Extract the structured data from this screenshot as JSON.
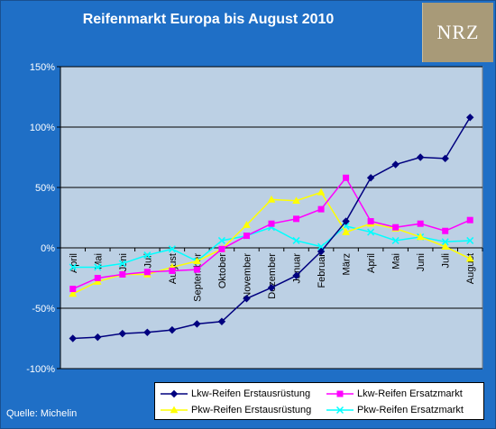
{
  "title": "Reifenmarkt Europa bis August 2010",
  "logo_text": "NRZ",
  "source": "Quelle: Michelin",
  "chart_data": {
    "type": "line",
    "title": "Reifenmarkt Europa bis August 2010",
    "xlabel": "",
    "ylabel": "",
    "categories": [
      "April",
      "Mai",
      "Juni",
      "Juli",
      "August",
      "September",
      "Oktober",
      "November",
      "Dezember",
      "Januar",
      "Februar",
      "März",
      "April",
      "Mai",
      "Juni",
      "Juli",
      "August"
    ],
    "ylim": [
      -100,
      150
    ],
    "yticks": [
      -100,
      -50,
      0,
      50,
      100,
      150
    ],
    "ytick_labels": [
      "-100%",
      "-50%",
      "0%",
      "50%",
      "100%",
      "150%"
    ],
    "grid": true,
    "legend_position": "bottom-right",
    "plot_background": "#bcd0e4",
    "series": [
      {
        "name": "Lkw-Reifen Erstausrüstung",
        "color": "#00007f",
        "marker": "diamond",
        "values": [
          -75,
          -74,
          -71,
          -70,
          -68,
          -63,
          -61,
          -42,
          -33,
          -23,
          -3,
          22,
          58,
          69,
          75,
          74,
          108
        ]
      },
      {
        "name": "Lkw-Reifen Ersatzmarkt",
        "color": "#ff00ff",
        "marker": "square",
        "values": [
          -34,
          -25,
          -22,
          -20,
          -19,
          -18,
          -1,
          10,
          20,
          24,
          32,
          58,
          22,
          17,
          20,
          14,
          23
        ]
      },
      {
        "name": "Pkw-Reifen Erstausrüstung",
        "color": "#ffff00",
        "marker": "triangle",
        "values": [
          -38,
          -28,
          -22,
          -22,
          -16,
          -11,
          -1,
          19,
          40,
          39,
          46,
          13,
          20,
          16,
          9,
          1,
          -9
        ]
      },
      {
        "name": "Pkw-Reifen Ersatzmarkt",
        "color": "#00ffff",
        "marker": "x",
        "values": [
          -16,
          -16,
          -13,
          -6,
          -1,
          -11,
          6,
          10,
          17,
          6,
          1,
          18,
          13,
          6,
          9,
          5,
          6
        ]
      }
    ]
  }
}
